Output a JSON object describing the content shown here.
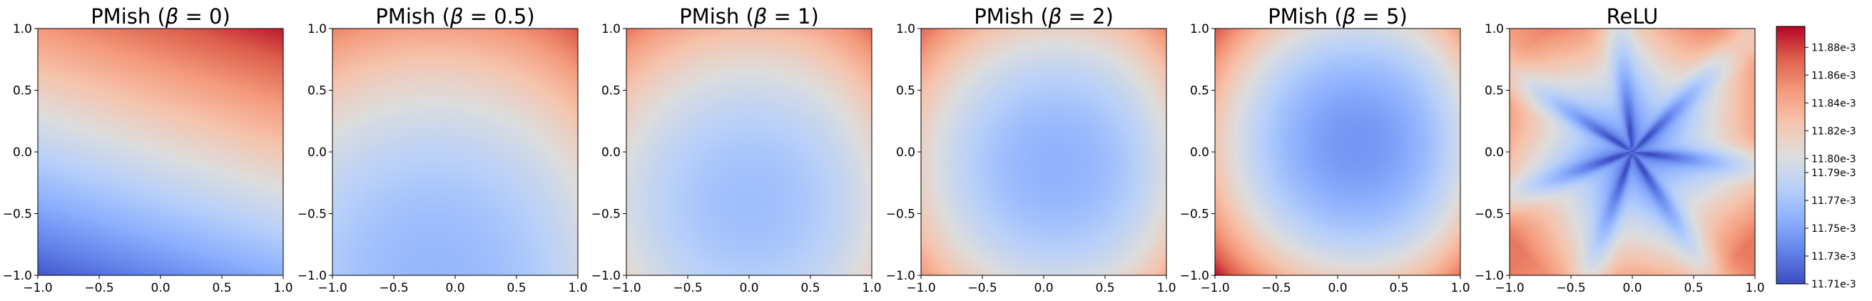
{
  "chart_data": [
    {
      "type": "heatmap",
      "title": "PMish (β = 0)",
      "title_parts": [
        "PMish (",
        "β",
        " = 0)"
      ],
      "xlim": [
        -1.0,
        1.0
      ],
      "ylim": [
        -1.0,
        1.0
      ],
      "xticks": [
        "−1.0",
        "−0.5",
        "0.0",
        "0.5",
        "1.0"
      ],
      "yticks": [
        "−1.0",
        "−0.5",
        "0.0",
        "0.5",
        "1.0"
      ],
      "model": {
        "kind": "pmish",
        "beta": 0
      },
      "value_range": [
        11.71,
        11.89
      ]
    },
    {
      "type": "heatmap",
      "title": "PMish (β = 0.5)",
      "title_parts": [
        "PMish (",
        "β",
        " = 0.5)"
      ],
      "xlim": [
        -1.0,
        1.0
      ],
      "ylim": [
        -1.0,
        1.0
      ],
      "xticks": [
        "−1.0",
        "−0.5",
        "0.0",
        "0.5",
        "1.0"
      ],
      "yticks": [
        "−1.0",
        "−0.5",
        "0.0",
        "0.5",
        "1.0"
      ],
      "model": {
        "kind": "pmish",
        "beta": 0.5
      },
      "value_range": [
        11.71,
        11.89
      ]
    },
    {
      "type": "heatmap",
      "title": "PMish (β = 1)",
      "title_parts": [
        "PMish (",
        "β",
        " = 1)"
      ],
      "xlim": [
        -1.0,
        1.0
      ],
      "ylim": [
        -1.0,
        1.0
      ],
      "xticks": [
        "−1.0",
        "−0.5",
        "0.0",
        "0.5",
        "1.0"
      ],
      "yticks": [
        "−1.0",
        "−0.5",
        "0.0",
        "0.5",
        "1.0"
      ],
      "model": {
        "kind": "pmish",
        "beta": 1
      },
      "value_range": [
        11.71,
        11.89
      ]
    },
    {
      "type": "heatmap",
      "title": "PMish (β = 2)",
      "title_parts": [
        "PMish (",
        "β",
        " = 2)"
      ],
      "xlim": [
        -1.0,
        1.0
      ],
      "ylim": [
        -1.0,
        1.0
      ],
      "xticks": [
        "−1.0",
        "−0.5",
        "0.0",
        "0.5",
        "1.0"
      ],
      "yticks": [
        "−1.0",
        "−0.5",
        "0.0",
        "0.5",
        "1.0"
      ],
      "model": {
        "kind": "pmish",
        "beta": 2
      },
      "value_range": [
        11.71,
        11.89
      ]
    },
    {
      "type": "heatmap",
      "title": "PMish (β = 5)",
      "title_parts": [
        "PMish (",
        "β",
        " = 5)"
      ],
      "xlim": [
        -1.0,
        1.0
      ],
      "ylim": [
        -1.0,
        1.0
      ],
      "xticks": [
        "−1.0",
        "−0.5",
        "0.0",
        "0.5",
        "1.0"
      ],
      "yticks": [
        "−1.0",
        "−0.5",
        "0.0",
        "0.5",
        "1.0"
      ],
      "model": {
        "kind": "pmish",
        "beta": 5
      },
      "value_range": [
        11.71,
        11.89
      ]
    },
    {
      "type": "heatmap",
      "title": "ReLU",
      "title_parts": [
        "ReLU"
      ],
      "xlim": [
        -1.0,
        1.0
      ],
      "ylim": [
        -1.0,
        1.0
      ],
      "xticks": [
        "−1.0",
        "−0.5",
        "0.0",
        "0.5",
        "1.0"
      ],
      "yticks": [
        "−1.0",
        "−0.5",
        "0.0",
        "0.5",
        "1.0"
      ],
      "model": {
        "kind": "relu"
      },
      "value_range": [
        11.71,
        11.89
      ]
    }
  ],
  "colorbar": {
    "colormap": "coolwarm",
    "unit": "e-3",
    "range": [
      11.71,
      11.895
    ],
    "ticks": [
      {
        "value": 11.71,
        "label": "11.71e-3"
      },
      {
        "value": 11.73,
        "label": "11.73e-3"
      },
      {
        "value": 11.75,
        "label": "11.75e-3"
      },
      {
        "value": 11.77,
        "label": "11.77e-3"
      },
      {
        "value": 11.79,
        "label": "11.79e-3"
      },
      {
        "value": 11.8,
        "label": "11.80e-3"
      },
      {
        "value": 11.82,
        "label": "11.82e-3"
      },
      {
        "value": 11.84,
        "label": "11.84e-3"
      },
      {
        "value": 11.86,
        "label": "11.86e-3"
      },
      {
        "value": 11.88,
        "label": "11.88e-3"
      }
    ]
  },
  "colors": {
    "low": "#3b4cc0",
    "mid": "#dddddd",
    "high": "#b40426"
  }
}
